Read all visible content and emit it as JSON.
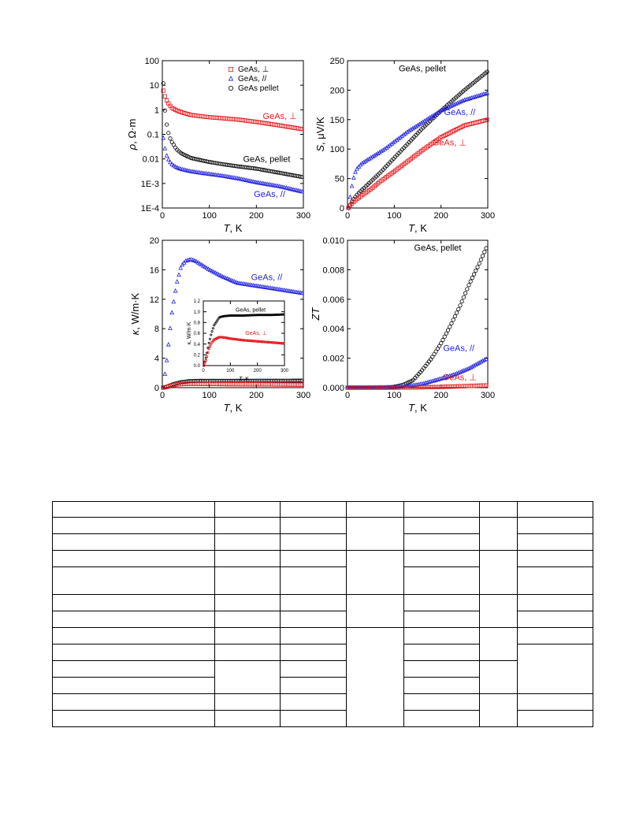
{
  "chart_data": [
    {
      "type": "scatter",
      "panel": "resistivity",
      "xlabel_italic": "T",
      "xlabel_rest": ", K",
      "ylabel_italic": "ρ",
      "ylabel_rest": ", Ω·m",
      "xlim": [
        0,
        300
      ],
      "ylim": [
        0.0001,
        100
      ],
      "yscale": "log",
      "x_ticks": [
        "0",
        "100",
        "200",
        "300"
      ],
      "y_ticks": [
        "1E-4",
        "1E-3",
        "0.01",
        "0.1",
        "1",
        "10",
        "100"
      ],
      "y_tick_values": [
        0.0001,
        0.001,
        0.01,
        0.1,
        1,
        10,
        100
      ],
      "legend": [
        {
          "label": "GeAs, ⊥",
          "marker": "square",
          "color": "#e31a1c"
        },
        {
          "label": "GeAs, //",
          "marker": "triangle",
          "color": "#1f1fdd"
        },
        {
          "label": "GeAs pellet",
          "marker": "circle",
          "color": "#000000"
        }
      ],
      "legend_position": "top-right",
      "series": [
        {
          "name": "GeAs, ⊥",
          "color": "#e31a1c",
          "x": [
            2,
            5,
            10,
            15,
            20,
            30,
            40,
            60,
            80,
            100,
            130,
            160,
            200,
            250,
            300
          ],
          "y": [
            6,
            3.8,
            2.2,
            1.6,
            1.2,
            0.95,
            0.8,
            0.62,
            0.55,
            0.5,
            0.45,
            0.4,
            0.32,
            0.23,
            0.16
          ]
        },
        {
          "name": "GeAs pellet",
          "color": "#000000",
          "x": [
            2,
            5,
            10,
            15,
            20,
            30,
            40,
            60,
            80,
            100,
            130,
            160,
            200,
            250,
            300
          ],
          "y": [
            12,
            1.2,
            0.2,
            0.08,
            0.05,
            0.025,
            0.017,
            0.011,
            0.009,
            0.0075,
            0.006,
            0.005,
            0.004,
            0.0027,
            0.0018
          ]
        },
        {
          "name": "GeAs, //",
          "color": "#1f1fdd",
          "x": [
            2,
            5,
            10,
            15,
            20,
            30,
            40,
            60,
            80,
            100,
            130,
            160,
            200,
            250,
            300
          ],
          "y": [
            0.07,
            0.03,
            0.012,
            0.008,
            0.006,
            0.0045,
            0.0038,
            0.0031,
            0.0027,
            0.0024,
            0.002,
            0.0016,
            0.0011,
            0.00075,
            0.00045
          ]
        }
      ],
      "annotations": [
        {
          "text": "GeAs, ⊥",
          "color": "#e31a1c",
          "x": 250,
          "y": 0.42
        },
        {
          "text": "GeAs, pellet",
          "color": "#000000",
          "x": 222,
          "y": 0.0075
        },
        {
          "text": "GeAs, //",
          "color": "#1f1fdd",
          "x": 228,
          "y": 0.00028
        }
      ]
    },
    {
      "type": "scatter",
      "panel": "seebeck",
      "xlabel_italic": "T",
      "xlabel_rest": ", K",
      "ylabel_italic": "S",
      "ylabel_rest": ", μV/K",
      "xlim": [
        0,
        300
      ],
      "ylim": [
        0,
        250
      ],
      "x_ticks": [
        "0",
        "100",
        "200",
        "300"
      ],
      "y_ticks": [
        "0",
        "50",
        "100",
        "150",
        "200",
        "250"
      ],
      "series": [
        {
          "name": "GeAs pellet",
          "color": "#000000",
          "x": [
            2,
            10,
            20,
            30,
            50,
            70,
            100,
            130,
            160,
            200,
            250,
            300
          ],
          "y": [
            0,
            12,
            22,
            30,
            45,
            60,
            85,
            110,
            135,
            165,
            200,
            232
          ]
        },
        {
          "name": "GeAs, //",
          "color": "#1f1fdd",
          "x": [
            2,
            5,
            10,
            15,
            20,
            30,
            40,
            60,
            80,
            100,
            130,
            160,
            200,
            250,
            300
          ],
          "y": [
            0,
            15,
            40,
            58,
            66,
            75,
            80,
            90,
            100,
            112,
            130,
            145,
            165,
            183,
            195
          ]
        },
        {
          "name": "GeAs, ⊥",
          "color": "#e31a1c",
          "x": [
            2,
            10,
            20,
            30,
            50,
            70,
            100,
            130,
            160,
            200,
            250,
            300
          ],
          "y": [
            0,
            8,
            15,
            21,
            32,
            45,
            62,
            80,
            98,
            120,
            140,
            150
          ]
        }
      ],
      "annotations": [
        {
          "text": "GeAs, pellet",
          "color": "#000000",
          "x": 160,
          "y": 232
        },
        {
          "text": "GeAs, //",
          "color": "#1f1fdd",
          "x": 240,
          "y": 158
        },
        {
          "text": "GeAs, ⊥",
          "color": "#e31a1c",
          "x": 218,
          "y": 106
        }
      ]
    },
    {
      "type": "scatter",
      "panel": "thermal-conductivity",
      "xlabel_italic": "T",
      "xlabel_rest": ", K",
      "ylabel_italic": "κ",
      "ylabel_rest": ", W/m·K",
      "xlim": [
        0,
        300
      ],
      "ylim": [
        0,
        20
      ],
      "x_ticks": [
        "0",
        "100",
        "200",
        "300"
      ],
      "y_ticks": [
        "0",
        "4",
        "8",
        "12",
        "16",
        "20"
      ],
      "series": [
        {
          "name": "GeAs, //",
          "color": "#1f1fdd",
          "x": [
            2,
            10,
            20,
            30,
            40,
            50,
            60,
            70,
            80,
            100,
            130,
            160,
            200,
            250,
            300
          ],
          "y": [
            0,
            4,
            10,
            14,
            16.5,
            17.2,
            17.4,
            17.2,
            16.8,
            16,
            15,
            14.2,
            13.8,
            13.3,
            12.8
          ]
        },
        {
          "name": "GeAs pellet",
          "color": "#000000",
          "x": [
            2,
            10,
            20,
            30,
            40,
            60,
            80,
            100,
            150,
            200,
            250,
            300
          ],
          "y": [
            0,
            0.15,
            0.4,
            0.6,
            0.75,
            0.9,
            0.92,
            0.93,
            0.93,
            0.94,
            0.94,
            0.95
          ]
        },
        {
          "name": "GeAs, ⊥",
          "color": "#e31a1c",
          "x": [
            2,
            10,
            20,
            30,
            40,
            60,
            80,
            100,
            150,
            200,
            250,
            300
          ],
          "y": [
            0,
            0.1,
            0.3,
            0.42,
            0.48,
            0.53,
            0.52,
            0.5,
            0.47,
            0.45,
            0.43,
            0.41
          ]
        }
      ],
      "annotations": [
        {
          "text": "GeAs, //",
          "color": "#1f1fdd",
          "x": 222,
          "y": 14.6
        }
      ],
      "inset": {
        "xlabel_italic": "T",
        "xlabel_rest": ", K",
        "ylabel": "κ, W/m·K",
        "xlim": [
          0,
          300
        ],
        "ylim": [
          0,
          1.2
        ],
        "x_ticks": [
          "0",
          "100",
          "200",
          "300"
        ],
        "y_ticks": [
          "0.0",
          "0.2",
          "0.4",
          "0.6",
          "0.8",
          "1.0",
          "1.2"
        ],
        "series": [
          {
            "name": "GeAs, pellet",
            "color": "#000000",
            "x": [
              2,
              10,
              20,
              30,
              40,
              60,
              80,
              100,
              150,
              200,
              250,
              300
            ],
            "y": [
              0,
              0.15,
              0.4,
              0.6,
              0.75,
              0.9,
              0.92,
              0.93,
              0.93,
              0.94,
              0.94,
              0.95
            ]
          },
          {
            "name": "GeAs, ⊥",
            "color": "#e31a1c",
            "x": [
              2,
              10,
              20,
              30,
              40,
              60,
              80,
              100,
              150,
              200,
              250,
              300
            ],
            "y": [
              0,
              0.1,
              0.3,
              0.42,
              0.48,
              0.53,
              0.52,
              0.5,
              0.47,
              0.45,
              0.43,
              0.41
            ]
          }
        ],
        "annotations": [
          {
            "text": "GeAs, pellet",
            "color": "#000000",
            "x": 175,
            "y": 1.0
          },
          {
            "text": "GeAs, ⊥",
            "color": "#e31a1c",
            "x": 195,
            "y": 0.57
          }
        ]
      }
    },
    {
      "type": "scatter",
      "panel": "figure-of-merit",
      "xlabel_italic": "T",
      "xlabel_rest": ", K",
      "ylabel_italic": "ZT",
      "ylabel_rest": "",
      "xlim": [
        0,
        300
      ],
      "ylim": [
        0,
        0.01
      ],
      "x_ticks": [
        "0",
        "100",
        "200",
        "300"
      ],
      "y_ticks": [
        "0.000",
        "0.002",
        "0.004",
        "0.006",
        "0.008",
        "0.010"
      ],
      "series": [
        {
          "name": "GeAs pellet",
          "color": "#000000",
          "x": [
            0,
            50,
            80,
            100,
            120,
            140,
            160,
            180,
            200,
            220,
            240,
            260,
            280,
            300
          ],
          "y": [
            0,
            0,
            1e-05,
            5e-05,
            0.0002,
            0.0005,
            0.0012,
            0.002,
            0.003,
            0.0042,
            0.0055,
            0.007,
            0.0083,
            0.0097
          ]
        },
        {
          "name": "GeAs, //",
          "color": "#1f1fdd",
          "x": [
            0,
            50,
            100,
            130,
            160,
            200,
            230,
            260,
            300
          ],
          "y": [
            0,
            0,
            3e-05,
            0.0001,
            0.00025,
            0.0006,
            0.0009,
            0.0013,
            0.002
          ]
        },
        {
          "name": "GeAs, ⊥",
          "color": "#e31a1c",
          "x": [
            0,
            100,
            150,
            200,
            250,
            300
          ],
          "y": [
            0,
            0,
            2e-05,
            5e-05,
            0.0001,
            0.00016
          ]
        }
      ],
      "annotations": [
        {
          "text": "GeAs, pellet",
          "color": "#000000",
          "x": 193,
          "y": 0.0093
        },
        {
          "text": "GeAs, //",
          "color": "#1f1fdd",
          "x": 238,
          "y": 0.0025
        },
        {
          "text": "GeAs, ⊥",
          "color": "#e31a1c",
          "x": 240,
          "y": 0.0005
        }
      ]
    }
  ]
}
